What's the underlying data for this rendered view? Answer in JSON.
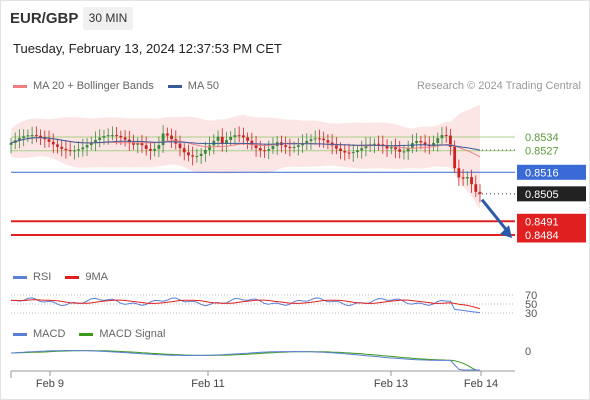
{
  "header": {
    "symbol": "EUR/GBP",
    "timeframe": "30 MIN"
  },
  "datetime": "Tuesday, February 13, 2024 12:37:53 PM CET",
  "price_legend": [
    {
      "label": "MA 20 + Bollinger Bands",
      "color": "#f08080"
    },
    {
      "label": "MA 50",
      "color": "#3a5a9a"
    }
  ],
  "credit": "Research © 2024 Trading Central",
  "rsi_legend": [
    {
      "label": "RSI",
      "color": "#5b7fd6"
    },
    {
      "label": "9MA",
      "color": "#e02020"
    }
  ],
  "macd_legend": [
    {
      "label": "MACD",
      "color": "#5b7fd6"
    },
    {
      "label": "MACD Signal",
      "color": "#3a9a1a"
    }
  ],
  "colors": {
    "up": "#3a8a3a",
    "down": "#d02020",
    "resistance": "#a8d088",
    "pivot": "#3a6ad6",
    "support": "#e02020",
    "arrow": "#2a5aa8"
  },
  "chart_data": [
    {
      "type": "candlestick",
      "ylim": [
        0.8475,
        0.856
      ],
      "x_ticks": [
        "Feb 9",
        "Feb 11",
        "Feb 13",
        "Feb 14"
      ],
      "levels": [
        {
          "label": "0.8534",
          "value": 0.8534,
          "kind": "resistance"
        },
        {
          "label": "0.8527",
          "value": 0.8527,
          "kind": "resistance"
        },
        {
          "label": "0.8516",
          "value": 0.8516,
          "kind": "pivot"
        },
        {
          "label": "0.8505",
          "value": 0.8505,
          "kind": "last"
        },
        {
          "label": "0.8491",
          "value": 0.8491,
          "kind": "support"
        },
        {
          "label": "0.8484",
          "value": 0.8484,
          "kind": "support"
        }
      ],
      "series": [
        {
          "name": "MA 20 + Bollinger Bands"
        },
        {
          "name": "MA 50"
        }
      ],
      "forecast_arrow": {
        "from": 0.8502,
        "to": 0.8486
      }
    },
    {
      "type": "line",
      "y_ticks": [
        "70",
        "50",
        "30"
      ],
      "ylim": [
        20,
        80
      ],
      "series": [
        {
          "name": "RSI"
        },
        {
          "name": "9MA"
        }
      ]
    },
    {
      "type": "line",
      "y_ticks": [
        "0"
      ],
      "series": [
        {
          "name": "MACD"
        },
        {
          "name": "MACD Signal"
        }
      ]
    }
  ]
}
